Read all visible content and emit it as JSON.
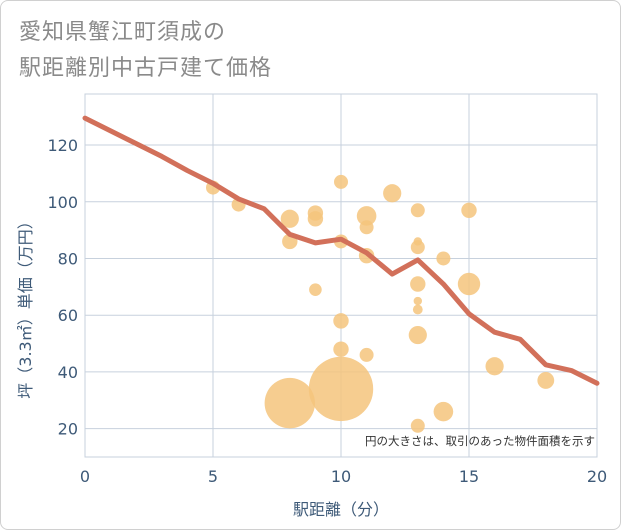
{
  "title_lines": [
    "愛知県蟹江町須成の",
    "駅距離別中古戸建て価格"
  ],
  "chart_data": {
    "type": "scatter",
    "xlabel": "駅距離（分）",
    "ylabel": "坪（3.3㎡）単価（万円）",
    "xlim": [
      0,
      20
    ],
    "ylim": [
      10,
      138
    ],
    "xticks": [
      0,
      5,
      10,
      15,
      20
    ],
    "yticks": [
      20,
      40,
      60,
      80,
      100,
      120
    ],
    "grid": true,
    "annotation": "円の大きさは、取引のあった物件面積を示す",
    "colors": {
      "bubble": "#f4c47c",
      "line": "#d2705a",
      "grid": "#c7d1dd",
      "axis_text": "#3e5a78"
    },
    "bubbles": [
      {
        "x": 5,
        "y": 105,
        "size": 1.0
      },
      {
        "x": 6,
        "y": 99,
        "size": 1.0
      },
      {
        "x": 8,
        "y": 94,
        "size": 1.3
      },
      {
        "x": 8,
        "y": 86,
        "size": 1.1
      },
      {
        "x": 8,
        "y": 29,
        "size": 3.6
      },
      {
        "x": 9,
        "y": 96,
        "size": 1.1
      },
      {
        "x": 9,
        "y": 94,
        "size": 1.1
      },
      {
        "x": 9,
        "y": 69,
        "size": 0.9
      },
      {
        "x": 10,
        "y": 107,
        "size": 1.0
      },
      {
        "x": 10,
        "y": 86,
        "size": 1.0
      },
      {
        "x": 10,
        "y": 58,
        "size": 1.1
      },
      {
        "x": 10,
        "y": 48,
        "size": 1.1
      },
      {
        "x": 10,
        "y": 34,
        "size": 4.6
      },
      {
        "x": 11,
        "y": 95,
        "size": 1.4
      },
      {
        "x": 11,
        "y": 91,
        "size": 1.0
      },
      {
        "x": 11,
        "y": 81,
        "size": 1.1
      },
      {
        "x": 11,
        "y": 46,
        "size": 1.0
      },
      {
        "x": 12,
        "y": 103,
        "size": 1.3
      },
      {
        "x": 13,
        "y": 97,
        "size": 1.0
      },
      {
        "x": 13,
        "y": 86,
        "size": 0.6
      },
      {
        "x": 13,
        "y": 84,
        "size": 1.0
      },
      {
        "x": 13,
        "y": 71,
        "size": 1.1
      },
      {
        "x": 13,
        "y": 65,
        "size": 0.6
      },
      {
        "x": 13,
        "y": 62,
        "size": 0.7
      },
      {
        "x": 13,
        "y": 53,
        "size": 1.3
      },
      {
        "x": 13,
        "y": 21,
        "size": 1.0
      },
      {
        "x": 14,
        "y": 80,
        "size": 1.0
      },
      {
        "x": 14,
        "y": 26,
        "size": 1.4
      },
      {
        "x": 15,
        "y": 97,
        "size": 1.1
      },
      {
        "x": 15,
        "y": 71,
        "size": 1.6
      },
      {
        "x": 16,
        "y": 42,
        "size": 1.3
      },
      {
        "x": 18,
        "y": 37,
        "size": 1.2
      }
    ],
    "line": {
      "x": [
        0,
        1,
        2,
        3,
        4,
        5,
        6,
        7,
        8,
        9,
        10,
        11,
        12,
        13,
        14,
        15,
        16,
        17,
        18,
        19,
        20
      ],
      "y": [
        129.5,
        125,
        120.5,
        116,
        111,
        106.5,
        101,
        97.5,
        88.5,
        85.5,
        86.8,
        82,
        74.5,
        79.5,
        71,
        60.5,
        54,
        51.5,
        42.5,
        40.5,
        36
      ]
    }
  }
}
